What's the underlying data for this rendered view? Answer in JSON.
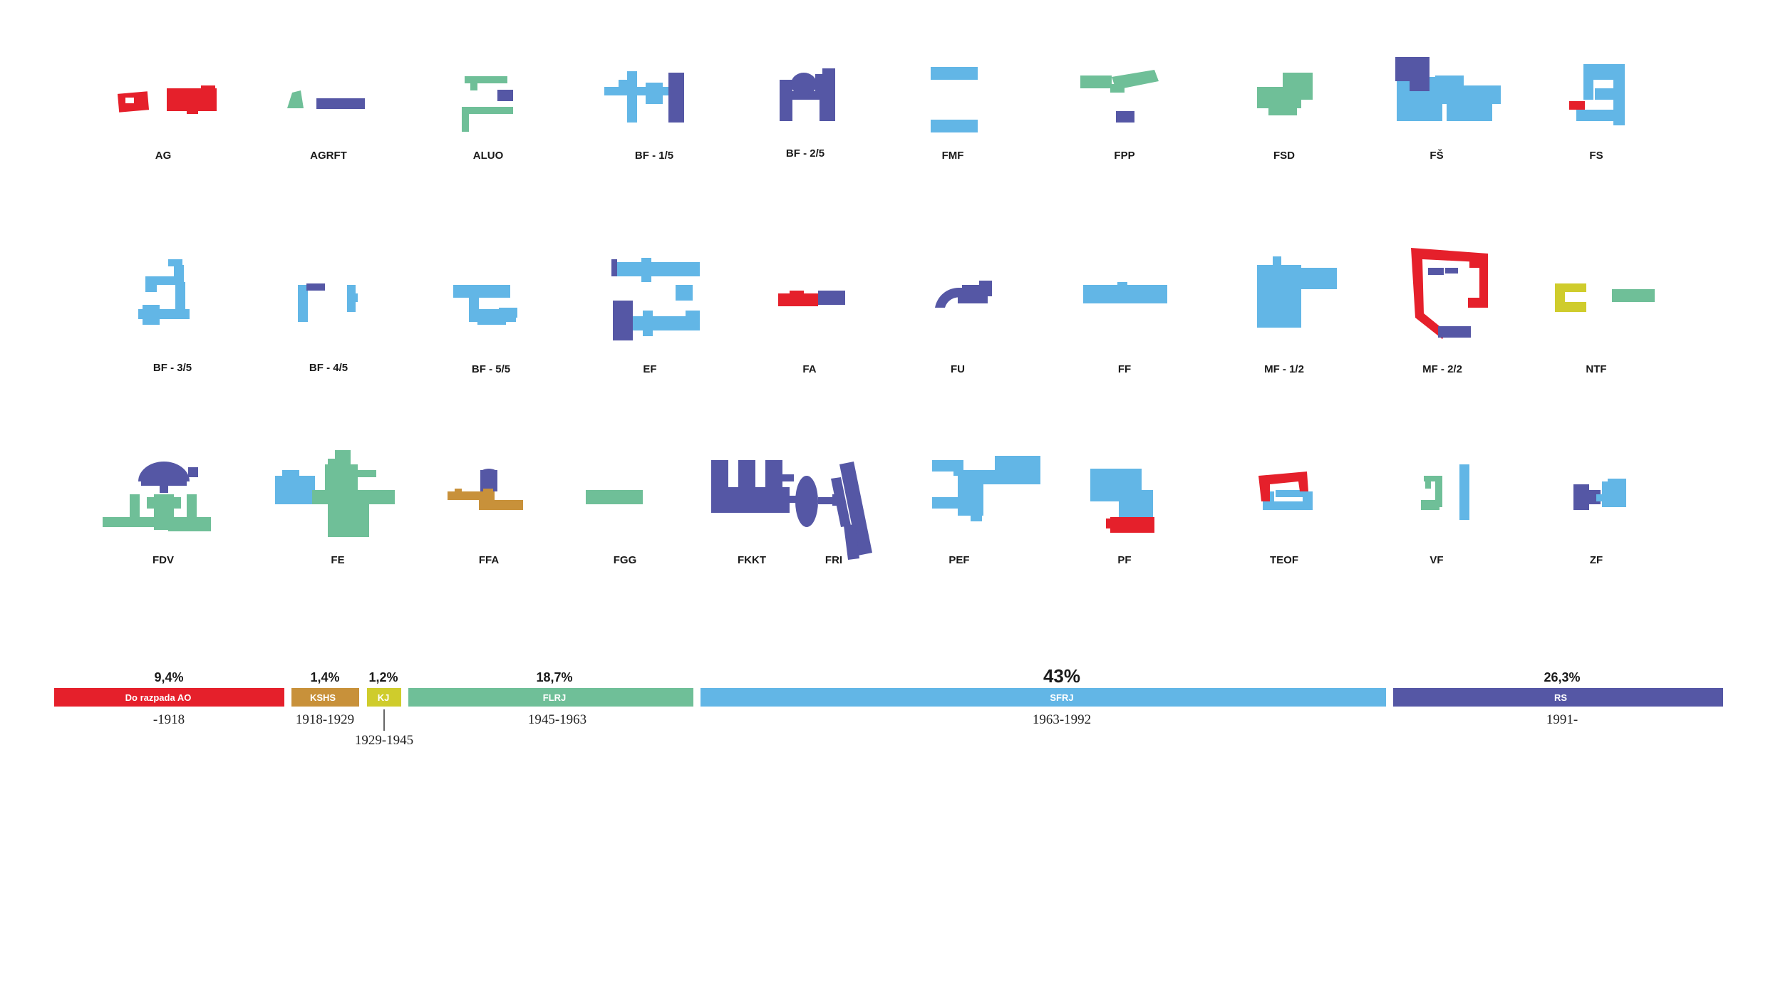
{
  "colors": {
    "do_razpada_ao": "#e5202b",
    "kshs": "#c8913a",
    "kj": "#cfcc2c",
    "flrj": "#6fbf98",
    "sfrj": "#62b6e6",
    "rs": "#5557a5"
  },
  "faculties": [
    {
      "label": "AG",
      "periods": [
        "do_razpada_ao"
      ]
    },
    {
      "label": "AGRFT",
      "periods": [
        "flrj",
        "rs"
      ]
    },
    {
      "label": "ALUO",
      "periods": [
        "flrj",
        "rs"
      ]
    },
    {
      "label": "BF - 1/5",
      "periods": [
        "sfrj",
        "rs"
      ]
    },
    {
      "label": "BF - 2/5",
      "periods": [
        "rs"
      ]
    },
    {
      "label": "FMF",
      "periods": [
        "sfrj"
      ]
    },
    {
      "label": "FPP",
      "periods": [
        "flrj",
        "rs"
      ]
    },
    {
      "label": "FSD",
      "periods": [
        "flrj"
      ]
    },
    {
      "label": "FŠ",
      "periods": [
        "rs",
        "sfrj"
      ]
    },
    {
      "label": "FS",
      "periods": [
        "sfrj",
        "do_razpada_ao"
      ]
    },
    {
      "label": "BF - 3/5",
      "periods": [
        "sfrj"
      ]
    },
    {
      "label": "BF - 4/5",
      "periods": [
        "sfrj",
        "rs"
      ]
    },
    {
      "label": "BF - 5/5",
      "periods": [
        "sfrj"
      ]
    },
    {
      "label": "EF",
      "periods": [
        "sfrj",
        "rs"
      ]
    },
    {
      "label": "FA",
      "periods": [
        "do_razpada_ao",
        "rs"
      ]
    },
    {
      "label": "FU",
      "periods": [
        "rs"
      ]
    },
    {
      "label": "FF",
      "periods": [
        "sfrj"
      ]
    },
    {
      "label": "MF - 1/2",
      "periods": [
        "sfrj"
      ]
    },
    {
      "label": "MF - 2/2",
      "periods": [
        "do_razpada_ao",
        "rs"
      ]
    },
    {
      "label": "NTF",
      "periods": [
        "kj",
        "flrj"
      ]
    },
    {
      "label": "FDV",
      "periods": [
        "flrj",
        "rs"
      ]
    },
    {
      "label": "FE",
      "periods": [
        "sfrj",
        "flrj"
      ]
    },
    {
      "label": "FFA",
      "periods": [
        "kshs",
        "rs"
      ]
    },
    {
      "label": "FGG",
      "periods": [
        "flrj"
      ]
    },
    {
      "label": "FKKT",
      "periods": [
        "rs"
      ]
    },
    {
      "label": "FRI",
      "periods": [
        "rs"
      ]
    },
    {
      "label": "PEF",
      "periods": [
        "sfrj"
      ]
    },
    {
      "label": "PF",
      "periods": [
        "sfrj",
        "do_razpada_ao"
      ]
    },
    {
      "label": "TEOF",
      "periods": [
        "do_razpada_ao",
        "sfrj"
      ]
    },
    {
      "label": "VF",
      "periods": [
        "flrj",
        "sfrj"
      ]
    },
    {
      "label": "ZF",
      "periods": [
        "rs",
        "sfrj"
      ]
    }
  ],
  "timeline": [
    {
      "key": "do_razpada_ao",
      "name": "Do razpada AO",
      "percent": "9,4%",
      "years": "-1918",
      "share": 9.4
    },
    {
      "key": "kshs",
      "name": "KSHS",
      "percent": "1,4%",
      "years": "1918-1929",
      "share": 1.4
    },
    {
      "key": "kj",
      "name": "KJ",
      "percent": "1,2%",
      "years": "1929-1945",
      "share": 1.2
    },
    {
      "key": "flrj",
      "name": "FLRJ",
      "percent": "18,7%",
      "years": "1945-1963",
      "share": 18.7
    },
    {
      "key": "sfrj",
      "name": "SFRJ",
      "percent": "43%",
      "years": "1963-1992",
      "share": 43
    },
    {
      "key": "rs",
      "name": "RS",
      "percent": "26,3%",
      "years": "1991-",
      "share": 26.3
    }
  ]
}
